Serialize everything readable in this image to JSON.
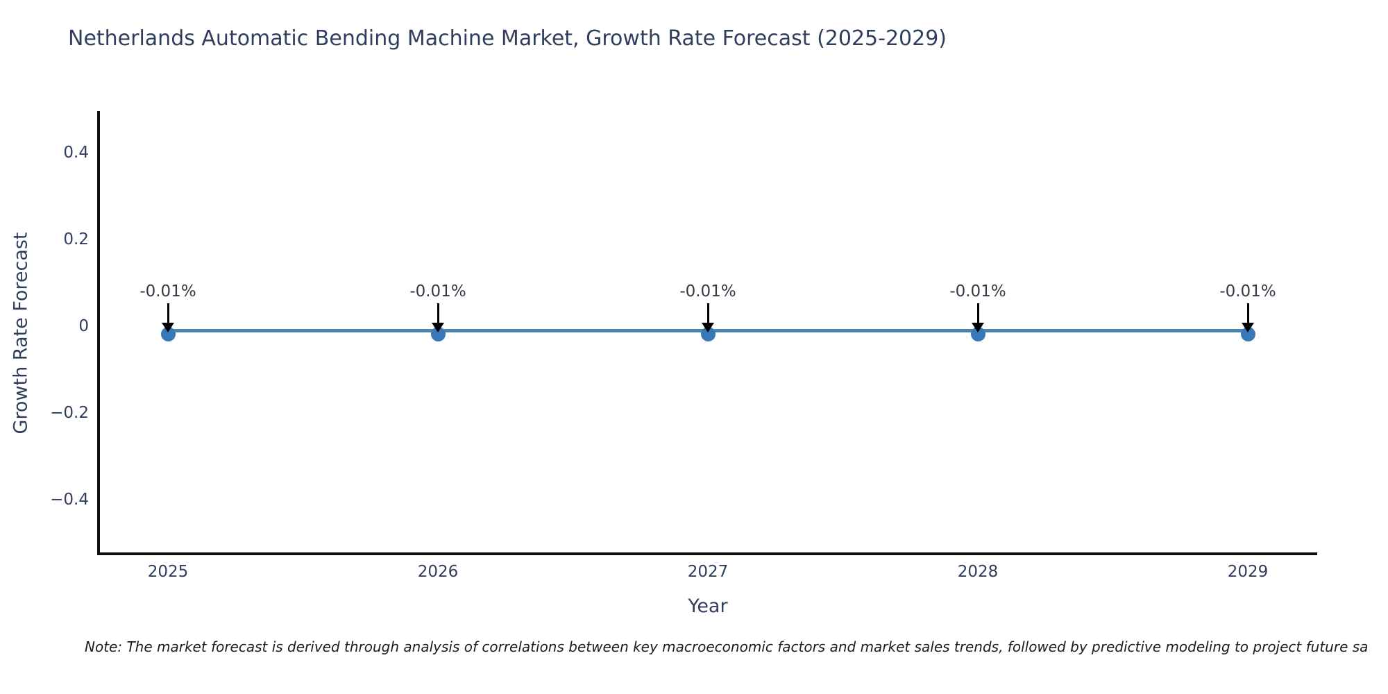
{
  "chart": {
    "note": "Note: The market forecast is derived through analysis of correlations between key macroeconomic factors and market sales trends, followed by predictive modeling to project future sa"
  },
  "chart_data": {
    "type": "line",
    "title": "Netherlands Automatic Bending Machine Market, Growth Rate Forecast (2025-2029)",
    "xlabel": "Year",
    "ylabel": "Growth Rate Forecast",
    "categories": [
      "2025",
      "2026",
      "2027",
      "2028",
      "2029"
    ],
    "series": [
      {
        "name": "Growth Rate Forecast",
        "values": [
          -0.01,
          -0.01,
          -0.01,
          -0.01,
          -0.01
        ]
      }
    ],
    "point_labels": [
      "-0.01%",
      "-0.01%",
      "-0.01%",
      "-0.01%",
      "-0.01%"
    ],
    "yticks": [
      {
        "value": 0.4,
        "label": "0.4"
      },
      {
        "value": 0.2,
        "label": "0.2"
      },
      {
        "value": 0,
        "label": "0"
      },
      {
        "value": -0.2,
        "label": "−0.2"
      },
      {
        "value": -0.4,
        "label": "−0.4"
      }
    ],
    "ylim": [
      -0.53,
      0.5
    ],
    "grid": false,
    "legend": "none",
    "colors": {
      "line": "#4a84b0",
      "marker": "#3778b9",
      "axis": "#0d0d12",
      "text": "#2f3e5c",
      "annotation": "#333a47",
      "arrow": "#000000"
    }
  }
}
